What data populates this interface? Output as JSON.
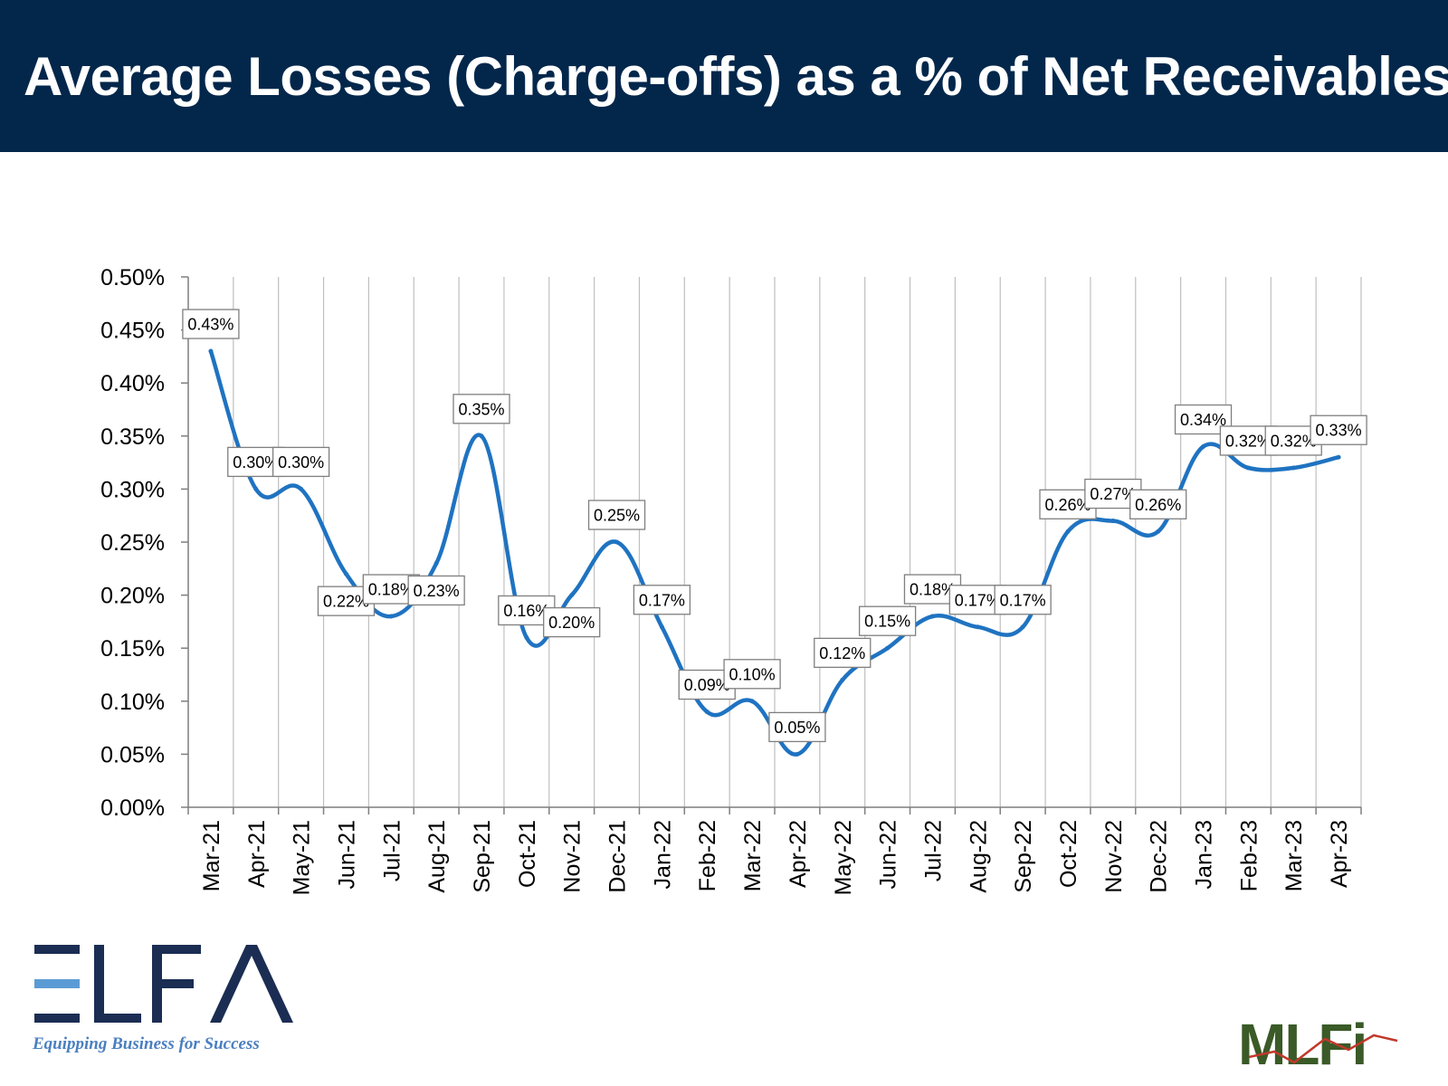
{
  "header": {
    "title": "Average Losses (Charge-offs) as a % of Net Receivables"
  },
  "logos": {
    "elfa_wordmark": "ELFA",
    "elfa_tagline": "Equipping Business for Success",
    "mlfi_wordmark": "MLFi"
  },
  "colors": {
    "header_bg": "#03274b",
    "line": "#1f73c1",
    "grid": "#bfbfbf",
    "elfa_blue": "#1b2d53",
    "elfa_light": "#5b9bd5",
    "mlfi_green": "#3a5a27"
  },
  "chart_data": {
    "type": "line",
    "title": "",
    "xlabel": "",
    "ylabel": "",
    "ylim": [
      0,
      0.5
    ],
    "yticks": [
      "0.00%",
      "0.05%",
      "0.10%",
      "0.15%",
      "0.20%",
      "0.25%",
      "0.30%",
      "0.35%",
      "0.40%",
      "0.45%",
      "0.50%"
    ],
    "grid": "vertical",
    "legend": "none",
    "categories": [
      "Mar-21",
      "Apr-21",
      "May-21",
      "Jun-21",
      "Jul-21",
      "Aug-21",
      "Sep-21",
      "Oct-21",
      "Nov-21",
      "Dec-21",
      "Jan-22",
      "Feb-22",
      "Mar-22",
      "Apr-22",
      "May-22",
      "Jun-22",
      "Jul-22",
      "Aug-22",
      "Sep-22",
      "Oct-22",
      "Nov-22",
      "Dec-22",
      "Jan-23",
      "Feb-23",
      "Mar-23",
      "Apr-23"
    ],
    "series": [
      {
        "values": [
          0.43,
          0.3,
          0.3,
          0.22,
          0.18,
          0.23,
          0.35,
          0.16,
          0.2,
          0.25,
          0.17,
          0.09,
          0.1,
          0.05,
          0.12,
          0.15,
          0.18,
          0.17,
          0.17,
          0.26,
          0.27,
          0.26,
          0.34,
          0.32,
          0.32,
          0.33
        ]
      }
    ],
    "data_labels": [
      "0.43%",
      "0.30%",
      "0.30%",
      "0.22%",
      "0.18%",
      "0.23%",
      "0.35%",
      "0.16%",
      "0.20%",
      "0.25%",
      "0.17%",
      "0.09%",
      "0.10%",
      "0.05%",
      "0.12%",
      "0.15%",
      "0.18%",
      "0.17%",
      "0.17%",
      "0.26%",
      "0.27%",
      "0.26%",
      "0.34%",
      "0.32%",
      "0.32%",
      "0.33%"
    ]
  }
}
